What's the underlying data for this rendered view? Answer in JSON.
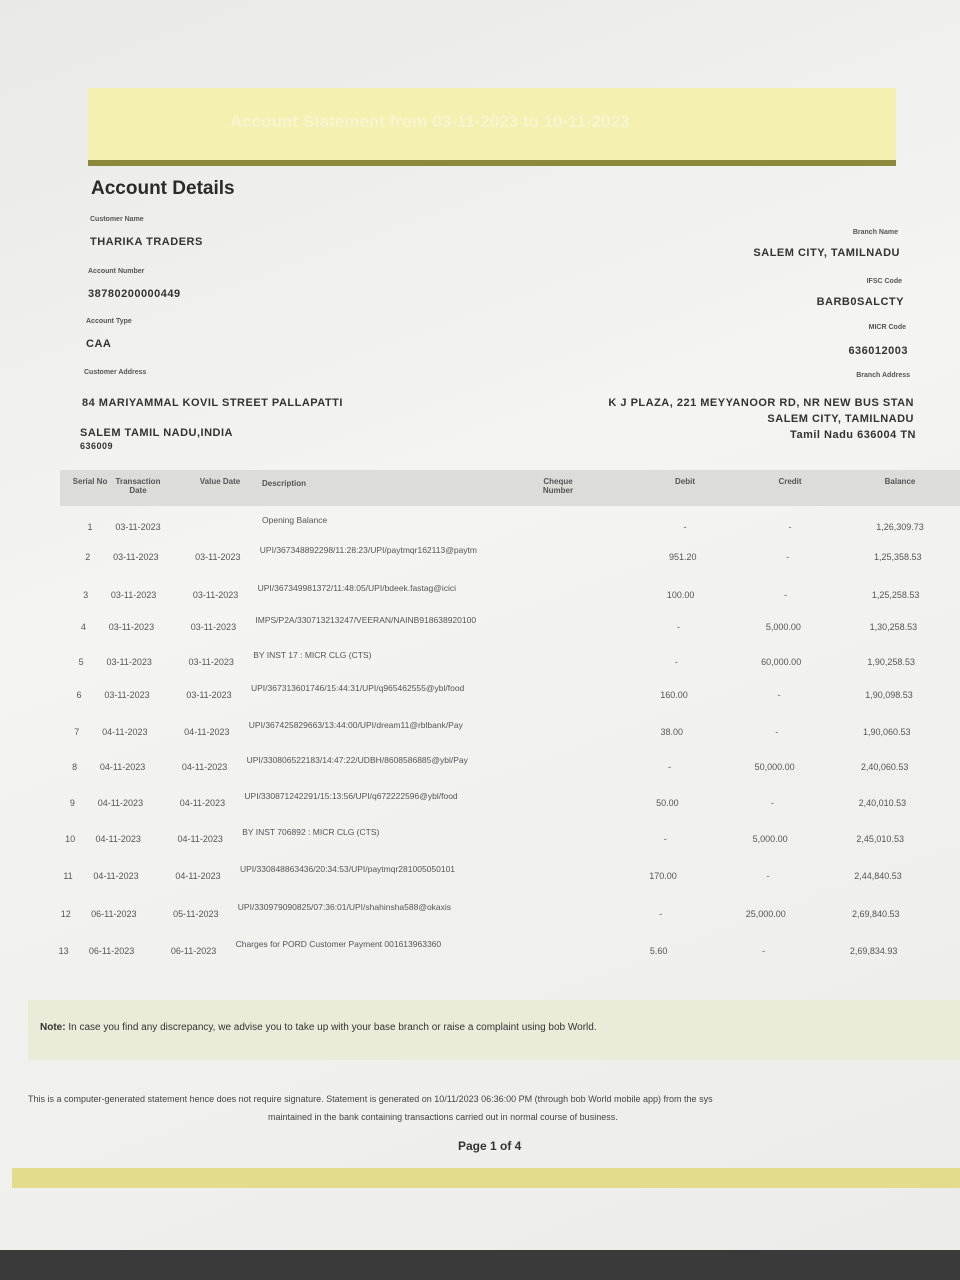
{
  "header": {
    "statement_title": "Account Statement from 03-11-2023 to 10-11-2023",
    "section_title": "Account Details"
  },
  "account": {
    "customer_name_label": "Customer Name",
    "customer_name": "THARIKA TRADERS",
    "account_number_label": "Account Number",
    "account_number": "38780200000449",
    "account_type_label": "Account Type",
    "account_type": "CAA",
    "customer_address_label": "Customer Address",
    "customer_address_line1": "84 MARIYAMMAL KOVIL STREET PALLAPATTI",
    "customer_address_line2": "SALEM TAMIL NADU,INDIA",
    "customer_address_line3": "636009",
    "branch_name_label": "Branch Name",
    "branch_name": "SALEM CITY, TAMILNADU",
    "ifsc_label": "IFSC Code",
    "ifsc": "BARB0SALCTY",
    "micr_label": "MICR Code",
    "micr": "636012003",
    "branch_address_label": "Branch Address",
    "branch_address_line1": "K J PLAZA, 221 MEYYANOOR RD, NR NEW BUS STAN",
    "branch_address_line2": "SALEM CITY, TAMILNADU",
    "branch_address_line3": "Tamil Nadu 636004 TN"
  },
  "table": {
    "columns": {
      "serial": "Serial No",
      "transaction_date": "Transaction Date",
      "value_date": "Value Date",
      "description": "Description",
      "cheque": "Cheque Number",
      "debit": "Debit",
      "credit": "Credit",
      "balance": "Balance"
    },
    "rows": [
      {
        "serial": "1",
        "transaction_date": "03-11-2023",
        "description": "Opening Balance",
        "debit": "-",
        "credit": "-",
        "balance": "1,26,309.73"
      },
      {
        "serial": "2",
        "transaction_date": "03-11-2023",
        "value_date": "03-11-2023",
        "description": "UPI/367348892298/11:28:23/UPI/paytmqr162113@paytm",
        "debit": "951.20",
        "credit": "-",
        "balance": "1,25,358.53"
      },
      {
        "serial": "3",
        "transaction_date": "03-11-2023",
        "value_date": "03-11-2023",
        "description": "UPI/367349981372/11:48:05/UPI/bdeek.fastag@icici",
        "debit": "100.00",
        "credit": "-",
        "balance": "1,25,258.53"
      },
      {
        "serial": "4",
        "transaction_date": "03-11-2023",
        "value_date": "03-11-2023",
        "description": "IMPS/P2A/330713213247/VEERAN/NAINB918638920100",
        "debit": "-",
        "credit": "5,000.00",
        "balance": "1,30,258.53"
      },
      {
        "serial": "5",
        "transaction_date": "03-11-2023",
        "value_date": "03-11-2023",
        "description": "BY INST 17 : MICR CLG (CTS)",
        "debit": "-",
        "credit": "60,000.00",
        "balance": "1,90,258.53"
      },
      {
        "serial": "6",
        "transaction_date": "03-11-2023",
        "value_date": "03-11-2023",
        "description": "UPI/367313601746/15:44:31/UPI/q965462555@ybl/food",
        "debit": "160.00",
        "credit": "-",
        "balance": "1,90,098.53"
      },
      {
        "serial": "7",
        "transaction_date": "04-11-2023",
        "value_date": "04-11-2023",
        "description": "UPI/367425829663/13:44:00/UPI/dream11@rblbank/Pay",
        "debit": "38.00",
        "credit": "-",
        "balance": "1,90,060.53"
      },
      {
        "serial": "8",
        "transaction_date": "04-11-2023",
        "value_date": "04-11-2023",
        "description": "UPI/330806522183/14:47:22/UDBH/8608586885@ybl/Pay",
        "debit": "-",
        "credit": "50,000.00",
        "balance": "2,40,060.53"
      },
      {
        "serial": "9",
        "transaction_date": "04-11-2023",
        "value_date": "04-11-2023",
        "description": "UPI/330871242291/15:13:56/UPI/q672222596@ybl/food",
        "debit": "50.00",
        "credit": "-",
        "balance": "2,40,010.53"
      },
      {
        "serial": "10",
        "transaction_date": "04-11-2023",
        "value_date": "04-11-2023",
        "description": "BY INST 706892 : MICR CLG (CTS)",
        "debit": "-",
        "credit": "5,000.00",
        "balance": "2,45,010.53"
      },
      {
        "serial": "11",
        "transaction_date": "04-11-2023",
        "value_date": "04-11-2023",
        "description": "UPI/330848863436/20:34:53/UPI/paytmqr281005050101",
        "debit": "170.00",
        "credit": "-",
        "balance": "2,44,840.53"
      },
      {
        "serial": "12",
        "transaction_date": "06-11-2023",
        "value_date": "05-11-2023",
        "description": "UPI/330979090825/07:36:01/UPI/shahinsha588@okaxis",
        "debit": "-",
        "credit": "25,000.00",
        "balance": "2,69,840.53"
      },
      {
        "serial": "13",
        "transaction_date": "06-11-2023",
        "value_date": "06-11-2023",
        "description": "Charges for PORD Customer Payment 001613963360",
        "debit": "5.60",
        "credit": "-",
        "balance": "2,69,834.93"
      }
    ]
  },
  "note": {
    "label": "Note:",
    "text": "In case you find any discrepancy, we advise you to take up with your base branch or raise a complaint using bob World."
  },
  "footer": {
    "line1": "This is a computer-generated statement hence does not require signature. Statement is generated on 10/11/2023 06:36:00 PM (through bob World mobile app) from the sys",
    "line2": "maintained in the bank containing transactions carried out in normal course of business.",
    "page": "Page 1 of 4"
  }
}
